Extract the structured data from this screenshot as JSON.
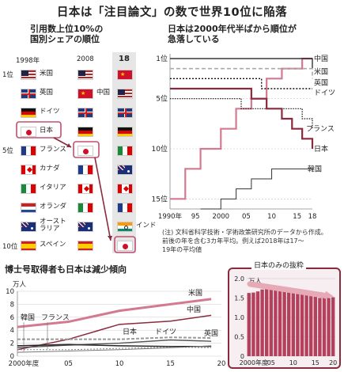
{
  "title": "日本は「注目論文」の数で世界10位に陥落",
  "left_panel": {
    "subtitle_lines": [
      "引用数上位10%の",
      "国別シェアの順位"
    ],
    "years": [
      "1998年",
      "2008",
      "18"
    ],
    "rank_labels": [
      "1位",
      "5位",
      "10位"
    ],
    "col1998": [
      {
        "flag": "us",
        "label": "米国"
      },
      {
        "flag": "uk",
        "label": "英国"
      },
      {
        "flag": "de",
        "label": "ドイツ"
      },
      {
        "flag": "jp",
        "label": "日本"
      },
      {
        "flag": "fr",
        "label": "フランス"
      },
      {
        "flag": "ca",
        "label": "カナダ"
      },
      {
        "flag": "it",
        "label": "イタリア"
      },
      {
        "flag": "nl",
        "label": "オランダ"
      },
      {
        "flag": "au",
        "label": "オースト\nラリア"
      },
      {
        "flag": "es",
        "label": "スペイン"
      }
    ],
    "col2008": [
      {
        "flag": "us"
      },
      {
        "flag": "cn",
        "label": "中国"
      },
      {
        "flag": "uk"
      },
      {
        "flag": "de"
      },
      {
        "flag": "jp"
      },
      {
        "flag": "fr"
      },
      {
        "flag": "ca"
      },
      {
        "flag": "it"
      },
      {
        "flag": "au"
      },
      {
        "flag": "es"
      }
    ],
    "col2018": [
      {
        "flag": "cn"
      },
      {
        "flag": "us"
      },
      {
        "flag": "uk"
      },
      {
        "flag": "de"
      },
      {
        "flag": "it"
      },
      {
        "flag": "au"
      },
      {
        "flag": "ca"
      },
      {
        "flag": "fr"
      },
      {
        "flag": "in",
        "label": "インド"
      },
      {
        "flag": "jp"
      }
    ]
  },
  "rank_chart": {
    "subtitle_lines": [
      "日本は2000年代半ばから順位が",
      "急落している"
    ],
    "x_ticks": [
      "1990年",
      "95",
      "2000",
      "05",
      "10",
      "15",
      "18"
    ],
    "y_ticks": [
      "1位",
      "5位",
      "10位",
      "15位"
    ],
    "note_lines": [
      "(注) 文科省科学技術・学術政策研究所のデータから作成。",
      "前後の年を含む3カ年平均。例えば2018年は17～",
      "19年の平均値"
    ],
    "series_labels": [
      "中国",
      "米国",
      "英国",
      "ドイツ",
      "フランス",
      "日本",
      "韓国"
    ]
  },
  "chart_data": [
    {
      "type": "line",
      "title": "日本は2000年代半ばから順位が急落している",
      "xlim": [
        1990,
        2018
      ],
      "ylim": [
        1,
        16
      ],
      "y_inverted": true,
      "series": [
        {
          "name": "中国",
          "color": "#c05070",
          "x": [
            1990,
            1993,
            1996,
            2000,
            2003,
            2006,
            2009,
            2012,
            2014,
            2016,
            2018
          ],
          "values": [
            15,
            12,
            10,
            8,
            6,
            5,
            3,
            2,
            2,
            1,
            1
          ]
        },
        {
          "name": "米国",
          "color": "#111111",
          "x": [
            1990,
            2016,
            2018
          ],
          "values": [
            1,
            1,
            2
          ]
        },
        {
          "name": "英国",
          "color": "#999999",
          "x": [
            1990,
            2018
          ],
          "values": [
            2,
            3
          ]
        },
        {
          "name": "ドイツ",
          "color": "#111111",
          "x": [
            1990,
            2008,
            2018
          ],
          "values": [
            3,
            4,
            4
          ]
        },
        {
          "name": "フランス",
          "color": "#111111",
          "x": [
            1990,
            2004,
            2010,
            2016,
            2018
          ],
          "values": [
            5,
            6,
            6,
            7,
            8
          ]
        },
        {
          "name": "日本",
          "color": "#8b2a3c",
          "x": [
            1990,
            2003,
            2006,
            2009,
            2012,
            2014,
            2016,
            2018
          ],
          "values": [
            4,
            4,
            5,
            6,
            7,
            8,
            9,
            10
          ]
        },
        {
          "name": "韓国",
          "color": "#333333",
          "x": [
            1996,
            2000,
            2003,
            2006,
            2010,
            2013,
            2016,
            2018
          ],
          "values": [
            16,
            15,
            14,
            13,
            12,
            12,
            12,
            12
          ]
        }
      ]
    },
    {
      "type": "line",
      "title": "博士号取得者も日本は減少傾向",
      "ylabel": "万人",
      "xlim": [
        2000,
        2020
      ],
      "ylim": [
        0,
        10
      ],
      "x_ticks": [
        "2000年度",
        "05",
        "10",
        "15",
        "20"
      ],
      "y_ticks": [
        "0",
        "2",
        "4",
        "6",
        "8",
        "10"
      ],
      "series": [
        {
          "name": "米国",
          "x": [
            2000,
            2005,
            2010,
            2015,
            2019
          ],
          "values": [
            4.5,
            5.3,
            7.0,
            8.0,
            8.8
          ]
        },
        {
          "name": "中国",
          "x": [
            2000,
            2005,
            2010,
            2015,
            2019
          ],
          "values": [
            1.0,
            2.6,
            4.9,
            5.4,
            6.3
          ]
        },
        {
          "name": "ドイツ",
          "x": [
            2000,
            2005,
            2010,
            2015,
            2019
          ],
          "values": [
            2.6,
            2.6,
            2.6,
            2.9,
            2.8
          ]
        },
        {
          "name": "英国",
          "x": [
            2000,
            2005,
            2010,
            2015,
            2019
          ],
          "values": [
            1.3,
            1.7,
            2.0,
            2.5,
            2.3
          ]
        },
        {
          "name": "日本",
          "x": [
            2000,
            2005,
            2010,
            2015,
            2019
          ],
          "values": [
            1.6,
            1.8,
            1.6,
            1.5,
            1.5
          ]
        },
        {
          "name": "フランス",
          "x": [
            2000,
            2005,
            2010,
            2015,
            2019
          ],
          "values": [
            1.0,
            1.0,
            1.2,
            1.4,
            1.3
          ]
        },
        {
          "name": "韓国",
          "x": [
            2000,
            2005,
            2010,
            2015,
            2019
          ],
          "values": [
            0.6,
            0.8,
            1.0,
            1.3,
            1.6
          ]
        }
      ]
    },
    {
      "type": "bar",
      "title": "日本のみの抜粋",
      "ylabel": "万人",
      "ylim": [
        0,
        2.0
      ],
      "y_ticks": [
        "0",
        "0.5",
        "1.0",
        "1.5",
        "2.0"
      ],
      "x_ticks": [
        "2000年度",
        "05",
        "10",
        "15",
        "20"
      ],
      "categories": [
        "2000",
        "2001",
        "2002",
        "2003",
        "2004",
        "2005",
        "2006",
        "2007",
        "2008",
        "2009",
        "2010",
        "2011",
        "2012",
        "2013",
        "2014",
        "2015",
        "2016",
        "2017",
        "2018",
        "2019"
      ],
      "values": [
        1.63,
        1.64,
        1.67,
        1.72,
        1.74,
        1.75,
        1.76,
        1.74,
        1.73,
        1.68,
        1.65,
        1.63,
        1.6,
        1.58,
        1.55,
        1.53,
        1.5,
        1.52,
        1.5,
        1.52
      ]
    }
  ],
  "phd_chart": {
    "subtitle": "博士号取得者も日本は減少傾向",
    "unit": "万人",
    "labels": {
      "us": "米国",
      "cn": "中国",
      "kr": "韓国",
      "fr": "フランス",
      "jp": "日本",
      "de": "ドイツ",
      "uk": "英国"
    }
  },
  "jp_chart": {
    "subtitle": "日本のみの抜粋",
    "unit": "万人"
  },
  "colors": {
    "accent": "#8b2a3c",
    "highlight": "#c05070",
    "panel_bg": "#f6eef0"
  }
}
